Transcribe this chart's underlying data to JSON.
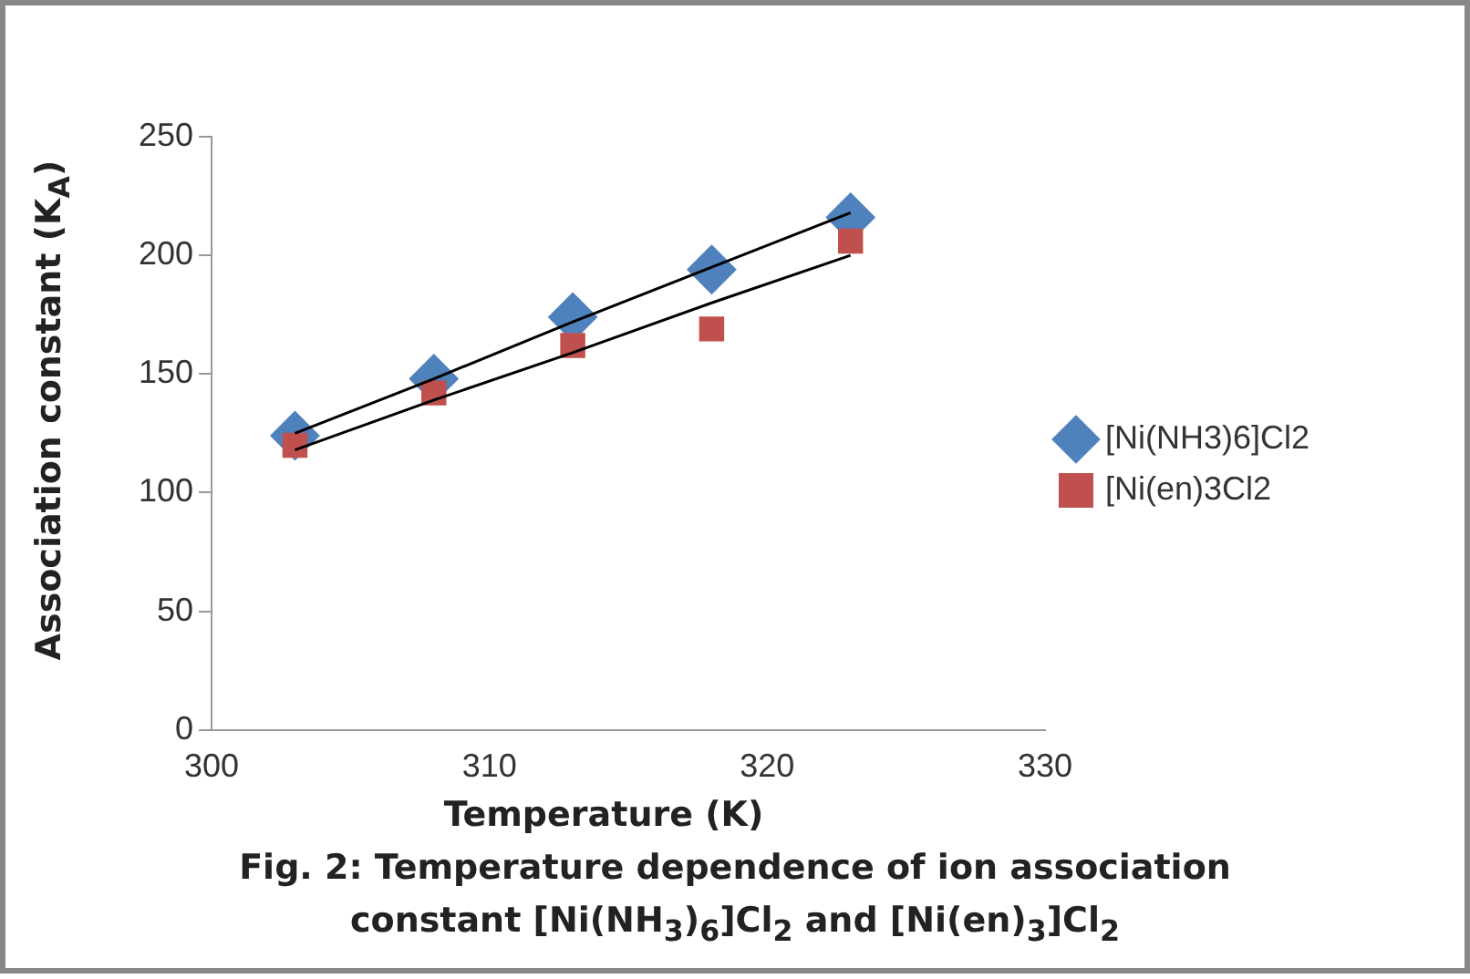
{
  "chart_data": {
    "type": "scatter",
    "title": "Fig. 2: Temperature dependence of ion association constant [Ni(NH$_{3}$)$_{6}$]Cl$_{2}$ and [Ni(en)$_{3}$]Cl$_{2}$",
    "xlabel": "Temperature (K)",
    "ylabel": "Association constant (K$_{A}$)",
    "x": [
      303,
      308,
      313,
      318,
      323
    ],
    "series": [
      {
        "name": "[Ni(NH3)6]Cl2",
        "color": "#4f81bd",
        "marker": "diamond",
        "values": [
          124,
          148,
          174,
          194,
          216
        ]
      },
      {
        "name": "[Ni(en)3Cl2",
        "color": "#c0504d",
        "marker": "square",
        "values": [
          120,
          142,
          162,
          169,
          206
        ]
      },
      {
        "type": "line",
        "color": "#000000",
        "values": [
          125,
          148,
          172,
          195,
          218
        ]
      },
      {
        "type": "line",
        "color": "#000000",
        "values": [
          118,
          139,
          159,
          180,
          200
        ]
      }
    ],
    "xlim": [
      300,
      330
    ],
    "xticks": [
      300,
      310,
      320,
      330
    ],
    "ylim": [
      0,
      250
    ],
    "yticks": [
      0,
      50,
      100,
      150,
      200,
      250
    ],
    "grid": false,
    "legend": "right"
  }
}
